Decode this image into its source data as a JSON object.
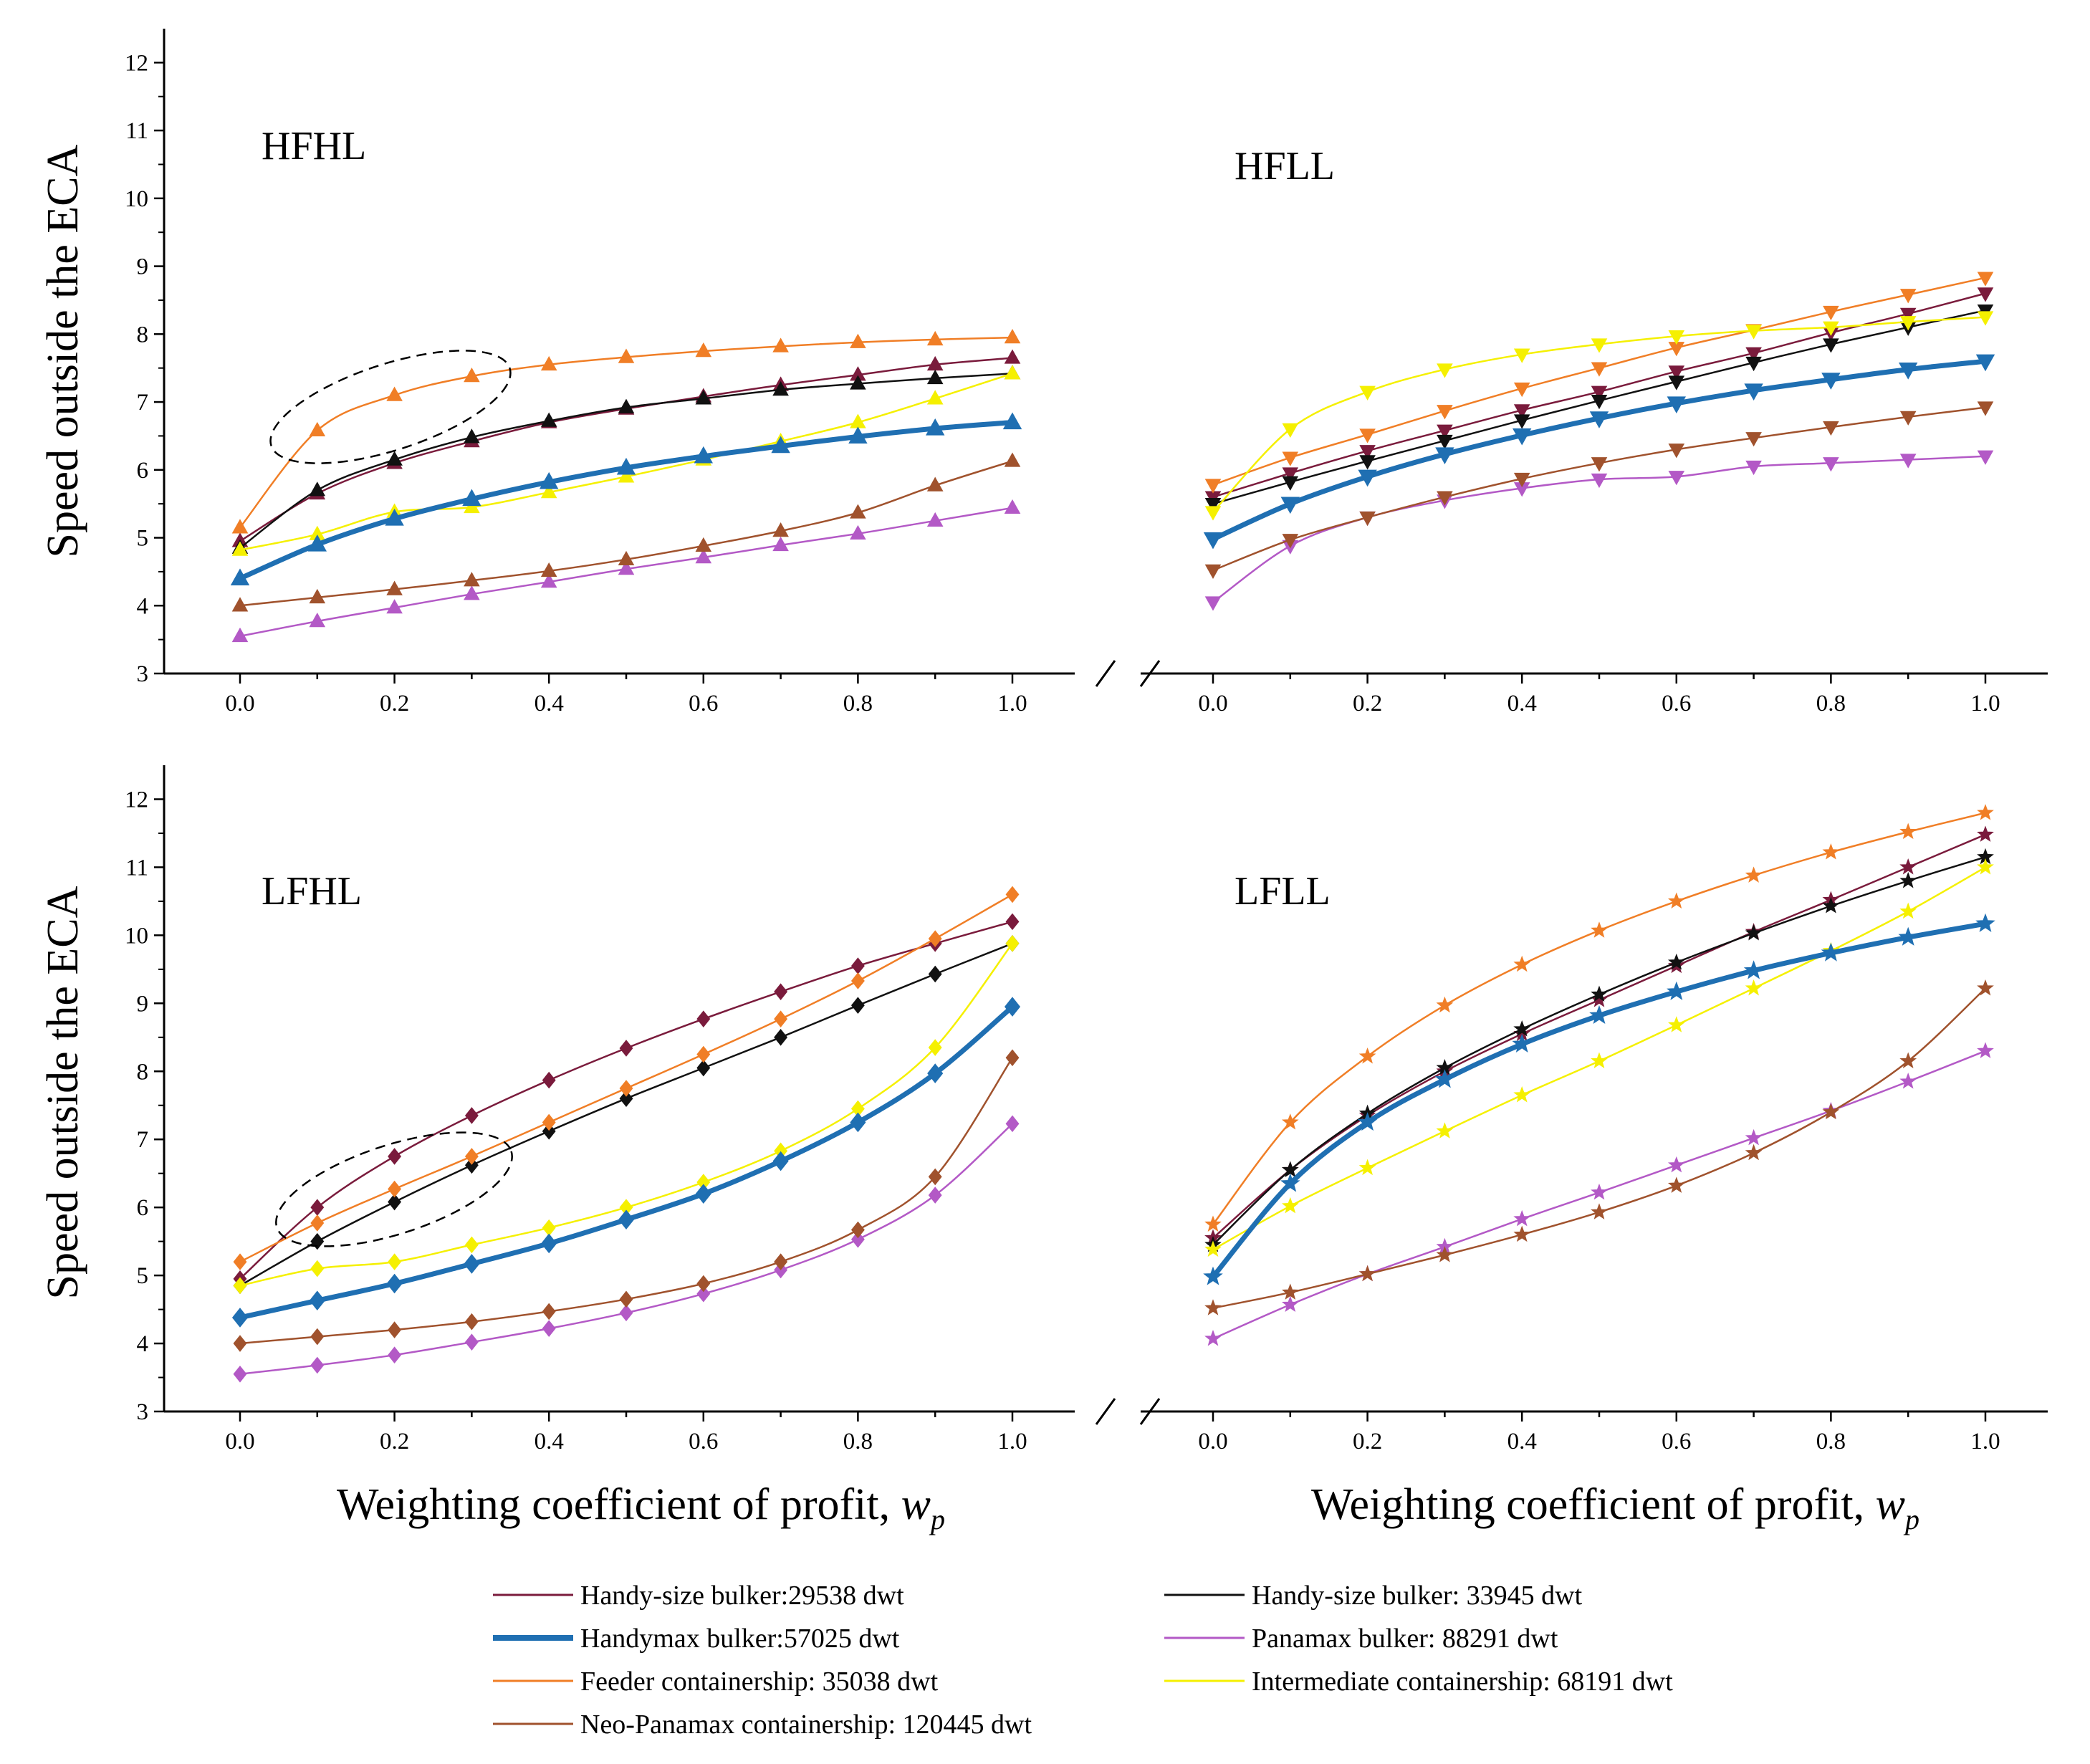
{
  "figure": {
    "y_axis_label": "Speed outside the ECA",
    "x_axis_label_left": "Weighting coefficient of profit, ",
    "x_axis_label_right": "Weighting coefficient of profit, ",
    "x_axis_var": "w",
    "x_axis_sub": "p"
  },
  "chart_data": {
    "type": "line",
    "x": [
      0.0,
      0.1,
      0.2,
      0.3,
      0.4,
      0.5,
      0.6,
      0.7,
      0.8,
      0.9,
      1.0
    ],
    "x_tick_labels": [
      "0.0",
      "0.2",
      "0.4",
      "0.6",
      "0.8",
      "1.0"
    ],
    "y_ticks": [
      3,
      4,
      5,
      6,
      7,
      8,
      9,
      10,
      11,
      12
    ],
    "ylim": [
      3,
      12.5
    ],
    "xlim": [
      -0.1,
      1.1
    ],
    "series_styles": [
      {
        "name": "Handy-size bulker:29538 dwt",
        "color": "#7a1b3c",
        "width": 2.5
      },
      {
        "name": "Handy-size bulker: 33945 dwt",
        "color": "#111111",
        "width": 2.5
      },
      {
        "name": "Handymax bulker:57025 dwt",
        "color": "#1f6fb2",
        "width": 7
      },
      {
        "name": "Panamax bulker: 88291 dwt",
        "color": "#b359c6",
        "width": 2.5
      },
      {
        "name": "Feeder containership: 35038 dwt",
        "color": "#f07e26",
        "width": 2.5
      },
      {
        "name": "Intermediate containership: 68191 dwt",
        "color": "#f5f000",
        "width": 2.5
      },
      {
        "name": "Neo-Panamax containership: 120445 dwt",
        "color": "#a0522d",
        "width": 2.5
      }
    ],
    "panels": [
      {
        "title": "HFHL",
        "marker": "triangle-up",
        "annotation": "dashed-ellipse",
        "series": [
          {
            "name": "Handy-size bulker:29538 dwt",
            "values": [
              4.95,
              5.65,
              6.1,
              6.42,
              6.7,
              6.9,
              7.08,
              7.25,
              7.4,
              7.55,
              7.65
            ]
          },
          {
            "name": "Handy-size bulker: 33945 dwt",
            "values": [
              4.85,
              5.7,
              6.15,
              6.48,
              6.72,
              6.92,
              7.05,
              7.18,
              7.27,
              7.35,
              7.42
            ]
          },
          {
            "name": "Handymax bulker:57025 dwt",
            "values": [
              4.4,
              4.9,
              5.28,
              5.57,
              5.82,
              6.03,
              6.2,
              6.35,
              6.49,
              6.61,
              6.7
            ]
          },
          {
            "name": "Panamax bulker: 88291 dwt",
            "values": [
              3.55,
              3.77,
              3.97,
              4.17,
              4.35,
              4.54,
              4.71,
              4.89,
              5.06,
              5.25,
              5.44
            ]
          },
          {
            "name": "Feeder containership: 35038 dwt",
            "values": [
              5.15,
              6.58,
              7.1,
              7.38,
              7.55,
              7.66,
              7.75,
              7.82,
              7.88,
              7.92,
              7.95
            ]
          },
          {
            "name": "Intermediate containership: 68191 dwt",
            "values": [
              4.82,
              5.05,
              5.38,
              5.45,
              5.67,
              5.9,
              6.15,
              6.42,
              6.7,
              7.05,
              7.42
            ]
          },
          {
            "name": "Neo-Panamax containership: 120445 dwt",
            "values": [
              4.0,
              4.12,
              4.24,
              4.37,
              4.51,
              4.68,
              4.88,
              5.1,
              5.37,
              5.77,
              6.13
            ]
          }
        ]
      },
      {
        "title": "HFLL",
        "marker": "triangle-down",
        "annotation": "none",
        "series": [
          {
            "name": "Handy-size bulker:29538 dwt",
            "values": [
              5.6,
              5.95,
              6.28,
              6.58,
              6.88,
              7.15,
              7.45,
              7.72,
              8.02,
              8.3,
              8.6
            ]
          },
          {
            "name": "Handy-size bulker: 33945 dwt",
            "values": [
              5.5,
              5.82,
              6.13,
              6.43,
              6.73,
              7.02,
              7.3,
              7.58,
              7.85,
              8.1,
              8.35
            ]
          },
          {
            "name": "Handymax bulker:57025 dwt",
            "values": [
              4.98,
              5.5,
              5.9,
              6.23,
              6.51,
              6.76,
              6.98,
              7.17,
              7.33,
              7.48,
              7.6
            ]
          },
          {
            "name": "Panamax bulker: 88291 dwt",
            "values": [
              4.05,
              4.88,
              5.3,
              5.55,
              5.73,
              5.86,
              5.9,
              6.05,
              6.1,
              6.15,
              6.2
            ]
          },
          {
            "name": "Feeder containership: 35038 dwt",
            "values": [
              5.78,
              6.18,
              6.52,
              6.87,
              7.2,
              7.5,
              7.8,
              8.06,
              8.33,
              8.58,
              8.83
            ]
          },
          {
            "name": "Intermediate containership: 68191 dwt",
            "values": [
              5.38,
              6.6,
              7.15,
              7.48,
              7.7,
              7.85,
              7.97,
              8.05,
              8.1,
              8.18,
              8.25
            ]
          },
          {
            "name": "Neo-Panamax containership: 120445 dwt",
            "values": [
              4.52,
              4.97,
              5.3,
              5.6,
              5.87,
              6.1,
              6.3,
              6.47,
              6.63,
              6.78,
              6.92
            ]
          }
        ]
      },
      {
        "title": "LFHL",
        "marker": "diamond",
        "annotation": "dashed-ellipse",
        "series": [
          {
            "name": "Handy-size bulker:29538 dwt",
            "values": [
              4.95,
              6.0,
              6.75,
              7.35,
              7.87,
              8.34,
              8.77,
              9.17,
              9.55,
              9.88,
              10.2
            ]
          },
          {
            "name": "Handy-size bulker: 33945 dwt",
            "values": [
              4.85,
              5.5,
              6.08,
              6.62,
              7.12,
              7.6,
              8.05,
              8.5,
              8.97,
              9.43,
              9.88
            ]
          },
          {
            "name": "Handymax bulker:57025 dwt",
            "values": [
              4.38,
              4.63,
              4.88,
              5.17,
              5.47,
              5.82,
              6.2,
              6.68,
              7.25,
              7.97,
              8.95
            ]
          },
          {
            "name": "Panamax bulker: 88291 dwt",
            "values": [
              3.55,
              3.68,
              3.83,
              4.02,
              4.22,
              4.45,
              4.73,
              5.08,
              5.53,
              6.18,
              7.23
            ]
          },
          {
            "name": "Feeder containership: 35038 dwt",
            "values": [
              5.2,
              5.77,
              6.27,
              6.75,
              7.25,
              7.75,
              8.25,
              8.77,
              9.33,
              9.95,
              10.6
            ]
          },
          {
            "name": "Intermediate containership: 68191 dwt",
            "values": [
              4.85,
              5.1,
              5.2,
              5.45,
              5.7,
              6.0,
              6.37,
              6.83,
              7.45,
              8.35,
              9.88
            ]
          },
          {
            "name": "Neo-Panamax containership: 120445 dwt",
            "values": [
              4.0,
              4.1,
              4.2,
              4.32,
              4.47,
              4.65,
              4.88,
              5.2,
              5.67,
              6.45,
              8.2
            ]
          }
        ]
      },
      {
        "title": "LFLL",
        "marker": "star",
        "annotation": "none",
        "series": [
          {
            "name": "Handy-size bulker:29538 dwt",
            "values": [
              5.55,
              6.55,
              7.35,
              8.0,
              8.55,
              9.05,
              9.55,
              10.05,
              10.52,
              11.0,
              11.48
            ]
          },
          {
            "name": "Handy-size bulker: 33945 dwt",
            "values": [
              5.45,
              6.55,
              7.38,
              8.05,
              8.62,
              9.13,
              9.6,
              10.03,
              10.43,
              10.8,
              11.15
            ]
          },
          {
            "name": "Handymax bulker:57025 dwt",
            "values": [
              4.98,
              6.35,
              7.25,
              7.88,
              8.4,
              8.82,
              9.17,
              9.48,
              9.74,
              9.97,
              10.17
            ]
          },
          {
            "name": "Panamax bulker: 88291 dwt",
            "values": [
              4.07,
              4.57,
              5.02,
              5.42,
              5.83,
              6.22,
              6.62,
              7.02,
              7.42,
              7.85,
              8.3
            ]
          },
          {
            "name": "Feeder containership: 35038 dwt",
            "values": [
              5.75,
              7.25,
              8.22,
              8.97,
              9.57,
              10.07,
              10.5,
              10.88,
              11.22,
              11.52,
              11.8
            ]
          },
          {
            "name": "Intermediate containership: 68191 dwt",
            "values": [
              5.38,
              6.02,
              6.58,
              7.12,
              7.65,
              8.15,
              8.68,
              9.22,
              9.77,
              10.35,
              11.0
            ]
          },
          {
            "name": "Neo-Panamax containership: 120445 dwt",
            "values": [
              4.52,
              4.75,
              5.02,
              5.3,
              5.6,
              5.93,
              6.32,
              6.8,
              7.4,
              8.15,
              9.22
            ]
          }
        ]
      }
    ]
  }
}
